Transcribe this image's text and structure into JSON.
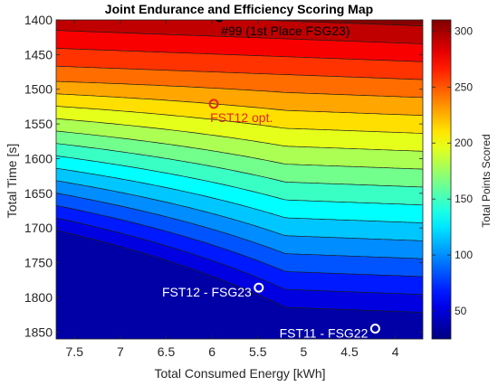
{
  "chart_data": {
    "type": "contour",
    "title": "Joint Endurance and Efficiency Scoring Map",
    "xlabel": "Total Consumed Energy [kWh]",
    "ylabel": "Total Time [s]",
    "colorbar_label": "Total Points Scored",
    "xlim": [
      7.7,
      3.7
    ],
    "ylim": [
      1400,
      1860
    ],
    "x_reversed": true,
    "y_reversed": true,
    "x_ticks": [
      7.5,
      7,
      6.5,
      6,
      5.5,
      5,
      4.5,
      4
    ],
    "x_tick_labels": [
      "7.5",
      "7",
      "6.5",
      "6",
      "5.5",
      "5",
      "4.5",
      "4"
    ],
    "y_ticks": [
      1400,
      1450,
      1500,
      1550,
      1600,
      1650,
      1700,
      1750,
      1800,
      1850
    ],
    "y_tick_labels": [
      "1400",
      "1450",
      "1500",
      "1550",
      "1600",
      "1650",
      "1700",
      "1750",
      "1800",
      "1850"
    ],
    "colorbar_range": [
      25,
      310
    ],
    "colorbar_ticks": [
      50,
      100,
      150,
      200,
      250,
      300
    ],
    "colorbar_tick_labels": [
      "50",
      "100",
      "150",
      "200",
      "250",
      "300"
    ],
    "colormap": "jet",
    "contour_levels": [
      44,
      60,
      76,
      92,
      108,
      124,
      140,
      156,
      172,
      188,
      204,
      220,
      236,
      252,
      268,
      284,
      300
    ],
    "contour_line_color": "#1a1a1a",
    "grid": false,
    "annotations": [
      {
        "label": "#99 (1st Place FSG23)",
        "x": 5.92,
        "y": 1396,
        "color": "#000000"
      },
      {
        "label": "FST12 opt.",
        "x": 5.98,
        "y": 1521,
        "color": "#e0281e"
      },
      {
        "label": "FST12 - FSG23",
        "x": 5.49,
        "y": 1786,
        "color": "#ffffff"
      },
      {
        "label": "FST11 - FSG22",
        "x": 4.22,
        "y": 1845,
        "color": "#ffffff"
      }
    ]
  }
}
